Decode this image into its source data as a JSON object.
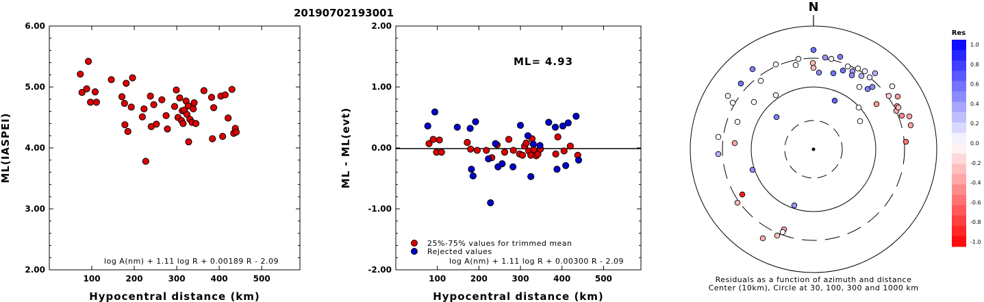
{
  "title": "20190702193001",
  "chart_data": [
    {
      "type": "scatter",
      "xlabel": "Hypocentral distance (km)",
      "ylabel": "ML(IASPEI)",
      "xlim": [
        0,
        590
      ],
      "ylim": [
        2.0,
        6.0
      ],
      "xticks": [
        "100",
        "200",
        "300",
        "400",
        "500"
      ],
      "yticks": [
        "2.00",
        "3.00",
        "4.00",
        "5.00",
        "6.00"
      ],
      "formula": "log A(nm) + 1.11 log R + 0.00189 R - 2.09",
      "points": [
        [
          73,
          5.21
        ],
        [
          77,
          4.91
        ],
        [
          88,
          4.97
        ],
        [
          92,
          5.42
        ],
        [
          97,
          4.75
        ],
        [
          108,
          4.92
        ],
        [
          111,
          4.75
        ],
        [
          146,
          5.12
        ],
        [
          171,
          4.84
        ],
        [
          177,
          4.73
        ],
        [
          181,
          5.06
        ],
        [
          178,
          4.38
        ],
        [
          185,
          4.27
        ],
        [
          193,
          4.67
        ],
        [
          196,
          5.15
        ],
        [
          219,
          4.51
        ],
        [
          223,
          4.64
        ],
        [
          227,
          3.78
        ],
        [
          238,
          4.85
        ],
        [
          240,
          4.35
        ],
        [
          246,
          4.71
        ],
        [
          252,
          4.39
        ],
        [
          265,
          4.79
        ],
        [
          275,
          4.53
        ],
        [
          278,
          4.31
        ],
        [
          295,
          4.68
        ],
        [
          299,
          4.95
        ],
        [
          303,
          4.5
        ],
        [
          307,
          4.82
        ],
        [
          311,
          4.45
        ],
        [
          313,
          4.61
        ],
        [
          315,
          4.4
        ],
        [
          318,
          4.62
        ],
        [
          322,
          4.77
        ],
        [
          324,
          4.55
        ],
        [
          328,
          4.1
        ],
        [
          327,
          4.69
        ],
        [
          331,
          4.47
        ],
        [
          336,
          4.42
        ],
        [
          339,
          4.64
        ],
        [
          341,
          4.74
        ],
        [
          345,
          4.4
        ],
        [
          364,
          4.94
        ],
        [
          382,
          4.83
        ],
        [
          384,
          4.15
        ],
        [
          387,
          4.66
        ],
        [
          404,
          4.85
        ],
        [
          408,
          4.19
        ],
        [
          414,
          4.87
        ],
        [
          421,
          4.49
        ],
        [
          430,
          4.96
        ],
        [
          434,
          4.24
        ],
        [
          438,
          4.32
        ],
        [
          440,
          4.26
        ]
      ]
    },
    {
      "type": "scatter",
      "xlabel": "Hypocentral distance (km)",
      "ylabel": "ML - ML(evt)",
      "xlim": [
        0,
        590
      ],
      "ylim": [
        -2.0,
        2.0
      ],
      "xticks": [
        "100",
        "200",
        "300",
        "400",
        "500"
      ],
      "yticks": [
        "-2.00",
        "-1.00",
        "0.00",
        "1.00",
        "2.00"
      ],
      "ml_label": "ML=",
      "ml_value": "4.93",
      "legend": [
        "25%-75% values for trimmed mean",
        "Rejected values"
      ],
      "formula": "log A(nm) + 1.11 log R + 0.00300 R - 2.09",
      "series": [
        {
          "color": "#dd0000",
          "points": [
            [
              80,
              0.07
            ],
            [
              90,
              0.14
            ],
            [
              98,
              -0.07
            ],
            [
              105,
              0.13
            ],
            [
              110,
              -0.07
            ],
            [
              172,
              0.09
            ],
            [
              180,
              -0.02
            ],
            [
              196,
              -0.04
            ],
            [
              218,
              -0.04
            ],
            [
              231,
              -0.16
            ],
            [
              244,
              0.05
            ],
            [
              262,
              -0.07
            ],
            [
              272,
              0.14
            ],
            [
              283,
              -0.04
            ],
            [
              298,
              -0.1
            ],
            [
              305,
              -0.12
            ],
            [
              310,
              0.03
            ],
            [
              314,
              0.08
            ],
            [
              320,
              -0.05
            ],
            [
              325,
              -0.12
            ],
            [
              328,
              0.15
            ],
            [
              332,
              -0.03
            ],
            [
              338,
              -0.13
            ],
            [
              342,
              -0.1
            ],
            [
              348,
              -0.02
            ],
            [
              385,
              -0.1
            ],
            [
              390,
              0.18
            ],
            [
              405,
              -0.05
            ],
            [
              420,
              0.03
            ],
            [
              438,
              -0.12
            ]
          ]
        },
        {
          "color": "#0000cc",
          "points": [
            [
              77,
              0.36
            ],
            [
              94,
              0.59
            ],
            [
              148,
              0.34
            ],
            [
              179,
              0.32
            ],
            [
              182,
              -0.35
            ],
            [
              186,
              -0.46
            ],
            [
              192,
              0.43
            ],
            [
              223,
              -0.18
            ],
            [
              228,
              -0.9
            ],
            [
              240,
              0.07
            ],
            [
              246,
              -0.31
            ],
            [
              256,
              -0.26
            ],
            [
              282,
              -0.31
            ],
            [
              300,
              0.37
            ],
            [
              318,
              0.2
            ],
            [
              325,
              -0.47
            ],
            [
              331,
              0.06
            ],
            [
              347,
              0.04
            ],
            [
              368,
              0.42
            ],
            [
              384,
              0.34
            ],
            [
              388,
              -0.35
            ],
            [
              402,
              0.36
            ],
            [
              409,
              -0.29
            ],
            [
              415,
              0.41
            ],
            [
              434,
              0.52
            ],
            [
              440,
              -0.2
            ]
          ]
        }
      ]
    },
    {
      "type": "polar-scatter",
      "north_label": "N",
      "caption_line1": "Residuals as a function of azimuth and distance",
      "caption_line2": "Center (10km), Circle at 30, 100, 300 and 1000 km",
      "colorbar_title": "Res",
      "colorbar_ticks": [
        "1.0",
        "0.8",
        "0.6",
        "0.4",
        "0.2",
        "0.0",
        "-0.2",
        "-0.4",
        "-0.6",
        "-0.8",
        "-1.0"
      ],
      "rings_km": [
        10,
        30,
        100,
        300,
        1000
      ],
      "points": [
        [
          1188,
          73,
          0.55
        ],
        [
          1205,
          84,
          0.4
        ],
        [
          1227,
          83,
          0.5
        ],
        [
          1214,
          86,
          0.05
        ],
        [
          1166,
          86,
          -0.05
        ],
        [
          1133,
          94,
          0.05
        ],
        [
          1099,
          101,
          0.5
        ],
        [
          1162,
          95,
          0.0
        ],
        [
          1187,
          92,
          -0.25
        ],
        [
          1196,
          106,
          0.45
        ],
        [
          1217,
          107,
          0.55
        ],
        [
          1238,
          97,
          0.0
        ],
        [
          1245,
          104,
          0.4
        ],
        [
          1253,
          100,
          0.0
        ],
        [
          1263,
          104,
          0.05
        ],
        [
          1258,
          111,
          0.3
        ],
        [
          1270,
          113,
          0.1
        ],
        [
          1278,
          107,
          0.3
        ],
        [
          1231,
          103,
          0.55
        ],
        [
          1244,
          110,
          0.45
        ],
        [
          1188,
          99,
          -0.25
        ],
        [
          1111,
          118,
          0.0
        ],
        [
          1082,
          122,
          0.55
        ],
        [
          1255,
          127,
          0.0
        ],
        [
          1267,
          130,
          0.5
        ],
        [
          1274,
          127,
          0.45
        ],
        [
          1303,
          126,
          -0.05
        ],
        [
          1298,
          140,
          -0.2
        ],
        [
          1311,
          141,
          -0.4
        ],
        [
          1219,
          147,
          0.6
        ],
        [
          1280,
          152,
          -0.4
        ],
        [
          1133,
          139,
          -0.05
        ],
        [
          1063,
          140,
          0.05
        ],
        [
          1070,
          150,
          0.0
        ],
        [
          1101,
          149,
          0.0
        ],
        [
          1254,
          157,
          0.0
        ],
        [
          1310,
          155,
          -0.4
        ],
        [
          1309,
          162,
          -0.35
        ],
        [
          1317,
          169,
          -0.45
        ],
        [
          1328,
          170,
          -0.35
        ],
        [
          1312,
          157,
          -0.25
        ],
        [
          1134,
          171,
          0.5
        ],
        [
          1077,
          178,
          0.0
        ],
        [
          1256,
          177,
          0.0
        ],
        [
          1330,
          183,
          -0.35
        ],
        [
          1049,
          200,
          0.0
        ],
        [
          1073,
          209,
          -0.35
        ],
        [
          1323,
          207,
          -0.55
        ],
        [
          1049,
          225,
          0.3
        ],
        [
          1099,
          248,
          0.45
        ],
        [
          1084,
          284,
          -0.9
        ],
        [
          1077,
          296,
          -0.3
        ],
        [
          1160,
          300,
          0.4
        ],
        [
          1145,
          335,
          -0.35
        ],
        [
          1135,
          344,
          -0.25
        ],
        [
          1143,
          339,
          0.0
        ],
        [
          1114,
          348,
          -0.3
        ]
      ]
    }
  ]
}
